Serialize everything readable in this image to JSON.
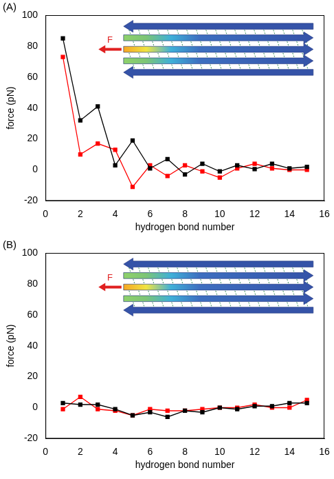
{
  "chart_data": [
    {
      "type": "line",
      "label": "(A)",
      "x_label": "hydrogen bond number",
      "y_label": "force (pN)",
      "annotation": "F",
      "x": [
        1,
        2,
        3,
        4,
        5,
        6,
        7,
        8,
        9,
        10,
        11,
        12,
        13,
        14,
        15
      ],
      "series": [
        {
          "color": "#000000",
          "marker": "square",
          "line_style": "solid",
          "values": [
            85,
            32,
            41,
            3,
            19,
            1,
            7,
            -3,
            4,
            -1,
            3,
            0.5,
            4,
            1,
            2
          ]
        },
        {
          "color": "#ff0000",
          "marker": "square",
          "line_style": "solid",
          "values": [
            73,
            10,
            17,
            13,
            -11,
            3,
            -4,
            3,
            -1,
            -5,
            1,
            4,
            1,
            0,
            0
          ]
        }
      ],
      "xlim": [
        0,
        16
      ],
      "xticks": [
        0,
        2,
        4,
        6,
        8,
        10,
        12,
        14,
        16
      ],
      "ylim": [
        -20,
        100
      ],
      "yticks": [
        -20,
        0,
        20,
        40,
        60,
        80,
        100
      ],
      "grid": false
    },
    {
      "type": "line",
      "label": "(B)",
      "x_label": "hydrogen bond number",
      "y_label": "force (pN)",
      "annotation": "F",
      "x": [
        1,
        2,
        3,
        4,
        5,
        6,
        7,
        8,
        9,
        10,
        11,
        12,
        13,
        14,
        15
      ],
      "series": [
        {
          "color": "#000000",
          "marker": "square",
          "line_style": "solid",
          "values": [
            3,
            2,
            2,
            -1,
            -5,
            -3,
            -6,
            -2,
            -3,
            0,
            -1,
            1,
            1,
            3,
            3
          ]
        },
        {
          "color": "#ff0000",
          "marker": "square",
          "line_style": "solid",
          "values": [
            -1,
            7,
            -1,
            -2,
            -5,
            -1,
            -2,
            -2,
            -1,
            0,
            0,
            2,
            0,
            0,
            5
          ]
        }
      ],
      "xlim": [
        0,
        16
      ],
      "xticks": [
        0,
        2,
        4,
        6,
        8,
        10,
        12,
        14,
        16
      ],
      "ylim": [
        -20,
        100
      ],
      "yticks": [
        -20,
        0,
        20,
        40,
        60,
        80,
        100
      ],
      "grid": false
    }
  ]
}
